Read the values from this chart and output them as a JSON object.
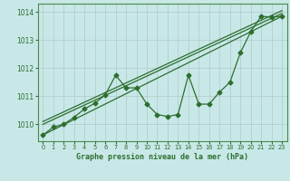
{
  "title": "Graphe pression niveau de la mer (hPa)",
  "background_color": "#c8e8e8",
  "grid_color": "#b0c8c8",
  "line_color": "#2d6e2d",
  "xlim": [
    -0.5,
    23.5
  ],
  "ylim": [
    1009.4,
    1014.3
  ],
  "yticks": [
    1010,
    1011,
    1012,
    1013,
    1014
  ],
  "xticks": [
    0,
    1,
    2,
    3,
    4,
    5,
    6,
    7,
    8,
    9,
    10,
    11,
    12,
    13,
    14,
    15,
    16,
    17,
    18,
    19,
    20,
    21,
    22,
    23
  ],
  "main_series": [
    1009.62,
    1009.9,
    1010.0,
    1010.25,
    1010.55,
    1010.75,
    1011.05,
    1011.75,
    1011.3,
    1011.3,
    1010.72,
    1010.35,
    1010.28,
    1010.35,
    1011.75,
    1010.72,
    1010.72,
    1011.15,
    1011.5,
    1012.55,
    1013.3,
    1013.85,
    1013.82,
    1013.85
  ],
  "trend1_x": [
    0,
    23
  ],
  "trend1_y": [
    1009.62,
    1013.85
  ],
  "trend2_x": [
    0,
    23
  ],
  "trend2_y": [
    1010.0,
    1013.95
  ],
  "trend3_x": [
    0,
    23
  ],
  "trend3_y": [
    1010.1,
    1014.05
  ]
}
